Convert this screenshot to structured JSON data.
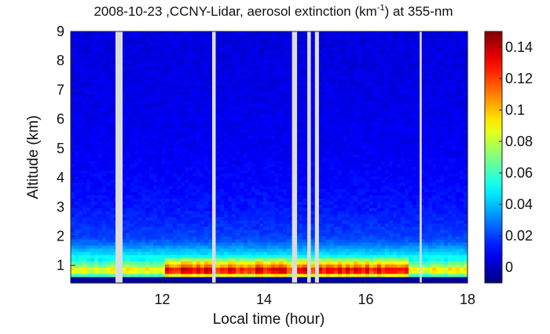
{
  "chart_data": {
    "type": "heatmap",
    "title": {
      "prefix": "2008-10-23 ,CCNY-Lidar, aerosol extinction (km",
      "superscript": "-1",
      "suffix": ") at 355-nm"
    },
    "xlabel": "Local time (hour)",
    "ylabel": "Altitude (km)",
    "xlim": [
      10.2,
      18.0
    ],
    "ylim": [
      0.4,
      9.0
    ],
    "x_ticks": [
      12,
      14,
      16,
      18
    ],
    "y_ticks": [
      1,
      2,
      3,
      4,
      5,
      6,
      7,
      8,
      9
    ],
    "colorbar": {
      "range": [
        -0.01,
        0.15
      ],
      "ticks": [
        0,
        0.02,
        0.04,
        0.06,
        0.08,
        0.1,
        0.12,
        0.14
      ],
      "colormap": "jet"
    },
    "data_gaps_hours": [
      [
        11.08,
        11.22
      ],
      [
        12.98,
        13.05
      ],
      [
        14.55,
        14.65
      ],
      [
        14.85,
        14.92
      ],
      [
        15.0,
        15.08
      ],
      [
        17.06,
        17.1
      ]
    ],
    "gap_color": "#dcdcdc",
    "boundary_layer": {
      "altitudes_km": [
        0.55,
        0.7,
        0.85,
        1.0,
        1.2,
        1.4,
        1.6,
        1.8,
        2.0,
        2.5,
        3.0,
        4.0,
        5.0,
        7.0,
        9.0
      ],
      "extinction_km-1": [
        0.0,
        0.09,
        0.11,
        0.085,
        0.06,
        0.045,
        0.035,
        0.025,
        0.02,
        0.016,
        0.013,
        0.01,
        0.008,
        0.006,
        0.005
      ]
    },
    "surface_band_altitude_km": [
      0.4,
      0.55
    ],
    "max_extinction_time_range_hours": [
      12.0,
      16.8
    ]
  }
}
